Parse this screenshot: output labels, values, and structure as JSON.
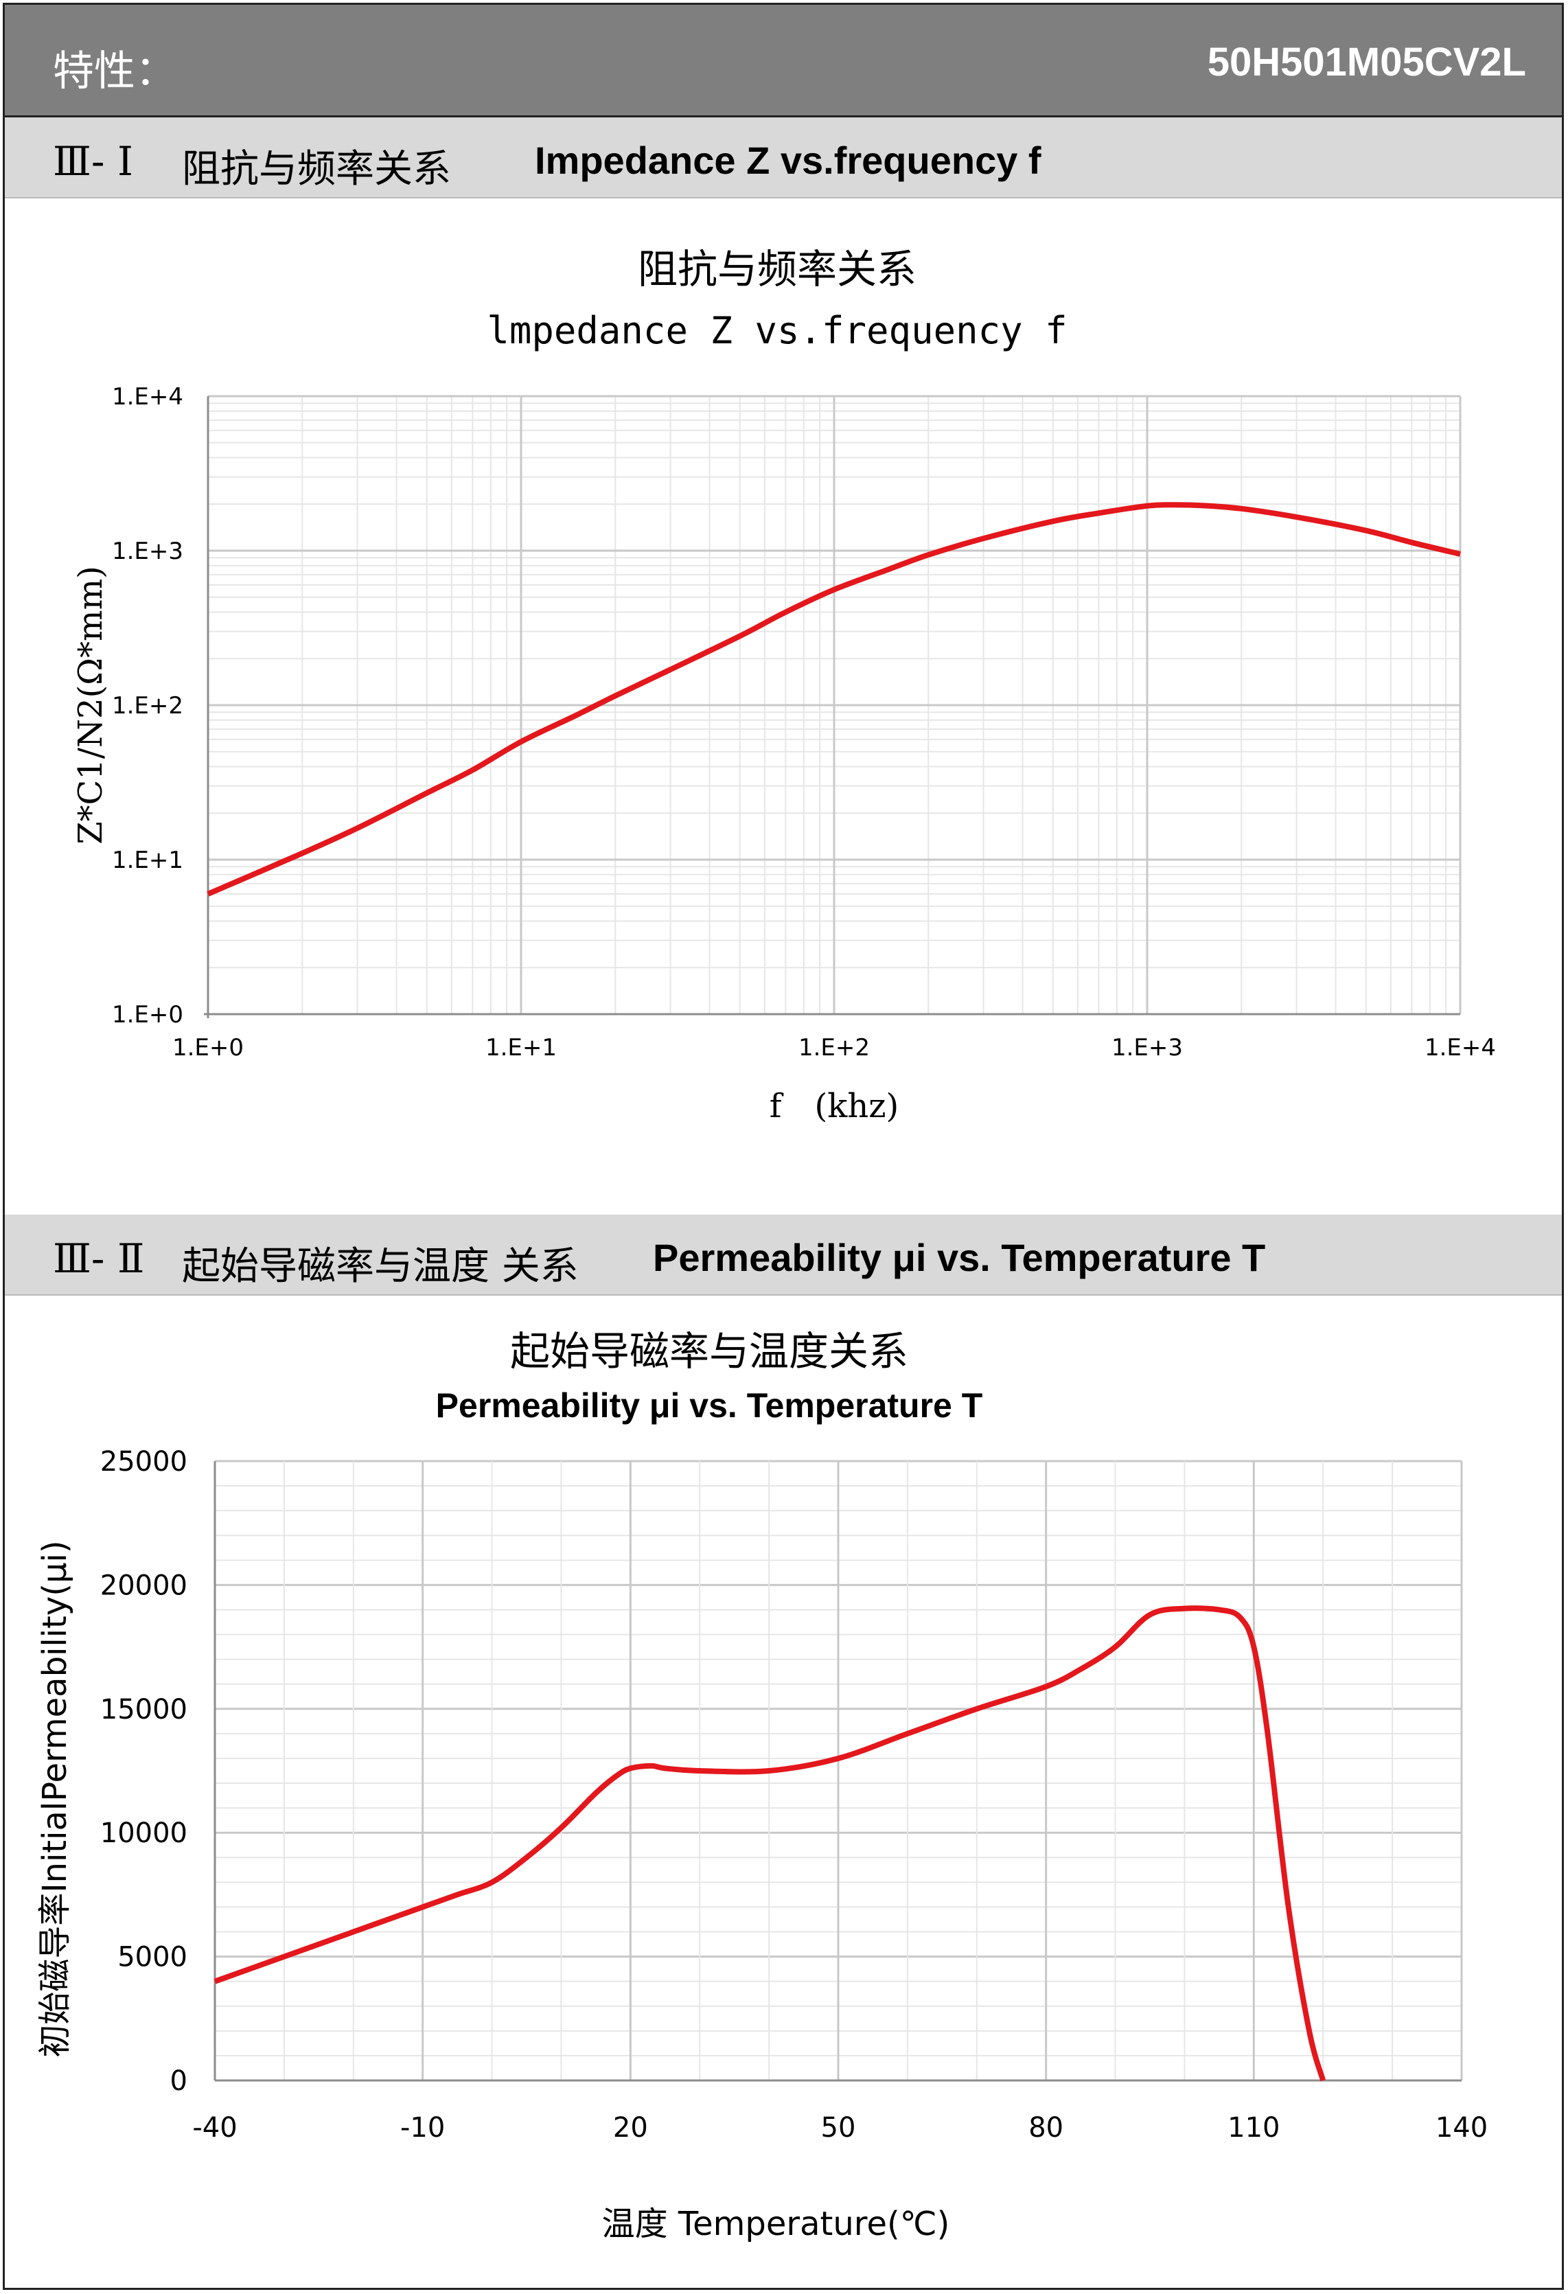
{
  "header": {
    "left": "特性：",
    "right": "50H501M05CV2L"
  },
  "section1": {
    "num": "Ⅲ- Ⅰ",
    "cn": "阻抗与频率关系",
    "en": "Impedance Z vs.frequency f"
  },
  "section2": {
    "num": "Ⅲ- Ⅱ",
    "cn": "起始导磁率与温度 关系",
    "en": "Permeability μi vs. Temperature T"
  },
  "colors": {
    "line": "#e3171c",
    "grid_major": "#c8c8c8",
    "grid_minor": "#e6e6e6",
    "axis": "#8c8c8c"
  },
  "chart_data": [
    {
      "type": "line",
      "title": "阻抗与频率关系",
      "subtitle": "lmpedance Z vs.frequency f",
      "xlabel": "f　(khz)",
      "ylabel": "Z*C1/N2(Ω*mm)",
      "xscale": "log",
      "yscale": "log",
      "xlim": [
        1,
        10000
      ],
      "ylim": [
        1,
        10000
      ],
      "xticks": [
        "1.E+0",
        "1.E+1",
        "1.E+2",
        "1.E+3",
        "1.E+4"
      ],
      "yticks": [
        "1.E+0",
        "1.E+1",
        "1.E+2",
        "1.E+3",
        "1.E+4"
      ],
      "grid": true,
      "series": [
        {
          "x": [
            1,
            2,
            3,
            5,
            7,
            10,
            15,
            20,
            30,
            50,
            70,
            100,
            150,
            200,
            300,
            500,
            700,
            1000,
            1200,
            1500,
            2000,
            3000,
            5000,
            7000,
            10000
          ],
          "y": [
            6,
            11,
            16,
            27,
            38,
            58,
            86,
            115,
            170,
            280,
            400,
            560,
            760,
            940,
            1200,
            1550,
            1750,
            1950,
            1980,
            1960,
            1870,
            1650,
            1350,
            1130,
            950
          ]
        }
      ]
    },
    {
      "type": "line",
      "title": "起始导磁率与温度关系",
      "subtitle": "Permeability μi vs. Temperature T",
      "xlabel": "温度 Temperature(℃)",
      "ylabel": "初始磁导率InitialPermeability(μi)",
      "xlim": [
        -40,
        140
      ],
      "ylim": [
        0,
        25000
      ],
      "xticks": [
        "-40",
        "-10",
        "20",
        "50",
        "80",
        "110",
        "140"
      ],
      "yticks": [
        "0",
        "5000",
        "10000",
        "15000",
        "20000",
        "25000"
      ],
      "grid": true,
      "series": [
        {
          "x": [
            -40,
            -30,
            -20,
            -10,
            -5,
            0,
            5,
            10,
            15,
            18,
            20,
            23,
            25,
            30,
            40,
            50,
            60,
            70,
            80,
            85,
            90,
            95,
            100,
            105,
            108,
            110,
            112,
            115,
            118,
            120
          ],
          "y": [
            4000,
            5000,
            6000,
            7000,
            7500,
            8000,
            9000,
            10200,
            11600,
            12300,
            12600,
            12700,
            12600,
            12500,
            12500,
            13000,
            14000,
            15000,
            15900,
            16600,
            17500,
            18800,
            19050,
            19000,
            18700,
            17500,
            14000,
            7000,
            2000,
            0
          ]
        }
      ]
    }
  ]
}
